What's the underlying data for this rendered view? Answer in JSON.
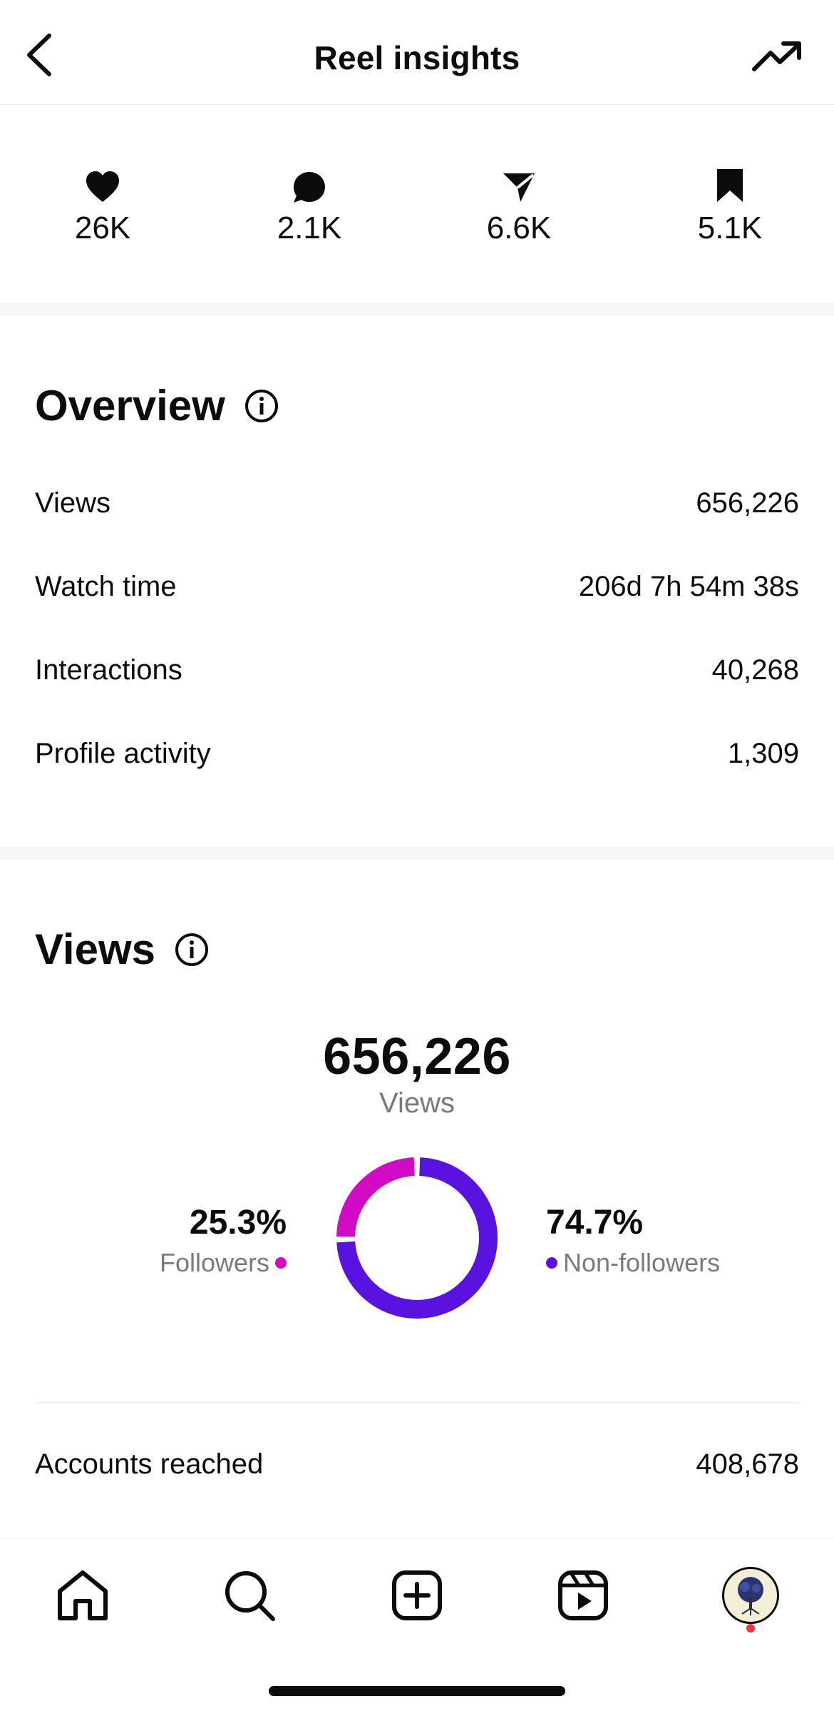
{
  "header": {
    "title": "Reel insights"
  },
  "stats": [
    {
      "icon": "heart-icon",
      "value": "26K"
    },
    {
      "icon": "comment-icon",
      "value": "2.1K"
    },
    {
      "icon": "share-icon",
      "value": "6.6K"
    },
    {
      "icon": "bookmark-icon",
      "value": "5.1K"
    }
  ],
  "overview": {
    "title": "Overview",
    "rows": [
      {
        "label": "Views",
        "value": "656,226"
      },
      {
        "label": "Watch time",
        "value": "206d 7h 54m 38s"
      },
      {
        "label": "Interactions",
        "value": "40,268"
      },
      {
        "label": "Profile activity",
        "value": "1,309"
      }
    ]
  },
  "views": {
    "title": "Views",
    "total": "656,226",
    "total_label": "Views",
    "followers": {
      "pct": "25.3%",
      "label": "Followers",
      "fraction": 0.253,
      "color": "#d10ac4"
    },
    "non_followers": {
      "pct": "74.7%",
      "label": "Non-followers",
      "fraction": 0.747,
      "color": "#5a12e0"
    },
    "accounts_reached": {
      "label": "Accounts reached",
      "value": "408,678"
    }
  },
  "tabbar": {
    "items": [
      "home-icon",
      "search-icon",
      "create-icon",
      "reels-icon",
      "profile-avatar"
    ]
  }
}
